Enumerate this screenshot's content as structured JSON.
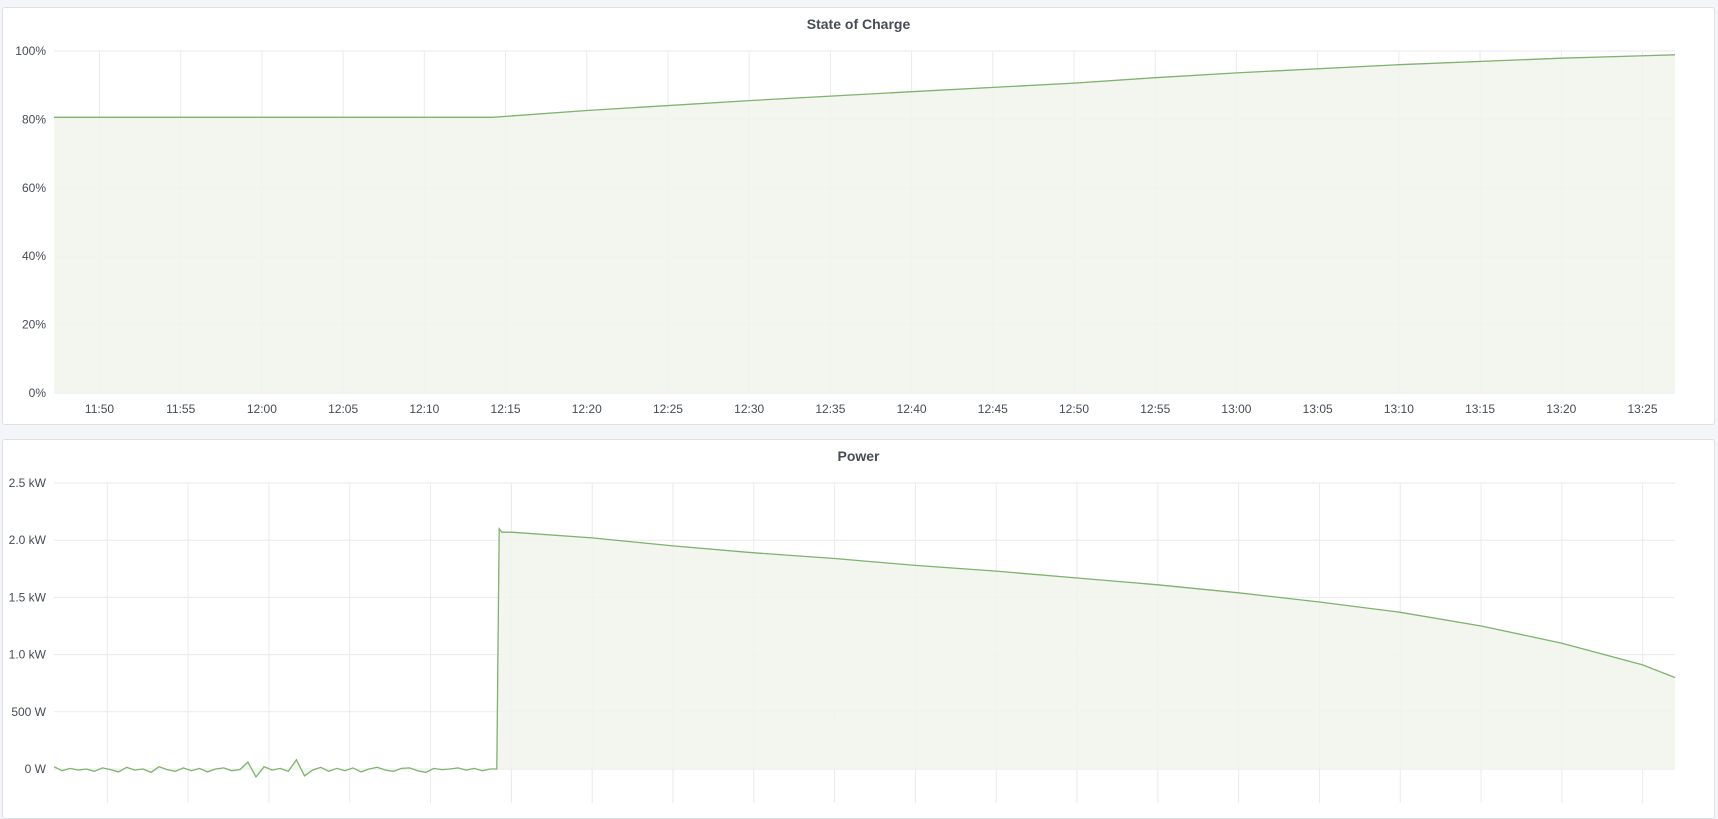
{
  "panels": [
    {
      "title": "State of Charge"
    },
    {
      "title": "Power"
    }
  ],
  "colors": {
    "series": "#7eb26d",
    "fill": "#f0f5ec",
    "grid": "#e9eaec",
    "background": "#f4f5f8"
  },
  "chart_data": [
    {
      "type": "area",
      "title": "State of Charge",
      "xlim": [
        "11:47:12",
        "13:27:00"
      ],
      "ylim": [
        0,
        100
      ],
      "grid": true,
      "x_ticks": [
        "11:50",
        "11:55",
        "12:00",
        "12:05",
        "12:10",
        "12:15",
        "12:20",
        "12:25",
        "12:30",
        "12:35",
        "12:40",
        "12:45",
        "12:50",
        "12:55",
        "13:00",
        "13:05",
        "13:10",
        "13:15",
        "13:20",
        "13:25"
      ],
      "y_ticks": [
        {
          "value": 0,
          "label": "0%"
        },
        {
          "value": 20,
          "label": "20%"
        },
        {
          "value": 40,
          "label": "40%"
        },
        {
          "value": 60,
          "label": "60%"
        },
        {
          "value": 80,
          "label": "80%"
        },
        {
          "value": 100,
          "label": "100%"
        }
      ],
      "series": [
        {
          "x": [
            "11:47:12",
            "12:14:12",
            "12:20:00",
            "12:30:00",
            "12:40:00",
            "12:50:00",
            "12:55:00",
            "13:00:00",
            "13:10:00",
            "13:20:00",
            "13:27:00"
          ],
          "y": [
            80.6,
            80.6,
            82.6,
            85.5,
            88.1,
            90.6,
            92.2,
            93.6,
            96.0,
            97.9,
            98.9
          ]
        }
      ]
    },
    {
      "type": "area",
      "title": "Power",
      "xlim": [
        "11:46:42",
        "13:27:00"
      ],
      "ylim": [
        0,
        2500
      ],
      "grid": true,
      "x_ticks": [
        "11:50",
        "11:55",
        "12:00",
        "12:05",
        "12:10",
        "12:15",
        "12:20",
        "12:25",
        "12:30",
        "12:35",
        "12:40",
        "12:45",
        "12:50",
        "12:55",
        "13:00",
        "13:05",
        "13:10",
        "13:15",
        "13:20",
        "13:25"
      ],
      "y_ticks": [
        {
          "value": 0,
          "label": "0 W"
        },
        {
          "value": 500,
          "label": "500 W"
        },
        {
          "value": 1000,
          "label": "1.0 kW"
        },
        {
          "value": 1500,
          "label": "1.5 kW"
        },
        {
          "value": 2000,
          "label": "2.0 kW"
        },
        {
          "value": 2500,
          "label": "2.5 kW"
        }
      ],
      "idle": {
        "start": "11:46:42",
        "step_seconds": 30,
        "values": [
          20,
          -15,
          5,
          -10,
          0,
          -20,
          10,
          -5,
          -25,
          15,
          -10,
          0,
          -30,
          20,
          -5,
          -20,
          10,
          -15,
          5,
          -25,
          0,
          10,
          -15,
          -5,
          60,
          -70,
          20,
          -10,
          5,
          -20,
          80,
          -60,
          -10,
          15,
          -20,
          5,
          -15,
          10,
          -25,
          0,
          15,
          -10,
          -20,
          5,
          10,
          -15,
          -30,
          5,
          -5,
          0,
          10,
          -10,
          5,
          -15,
          0
        ]
      },
      "series": [
        {
          "x": [
            "12:14:06",
            "12:14:15",
            "12:14:25",
            "12:15:00",
            "12:20:00",
            "12:25:00",
            "12:30:00",
            "12:35:00",
            "12:40:00",
            "12:45:00",
            "12:50:00",
            "12:55:00",
            "13:00:00",
            "13:05:00",
            "13:10:00",
            "13:15:00",
            "13:20:00",
            "13:25:00",
            "13:27:00"
          ],
          "y": [
            0,
            2100,
            2070,
            2070,
            2020,
            1950,
            1890,
            1840,
            1780,
            1730,
            1670,
            1610,
            1540,
            1460,
            1370,
            1250,
            1100,
            910,
            800
          ]
        }
      ]
    }
  ]
}
